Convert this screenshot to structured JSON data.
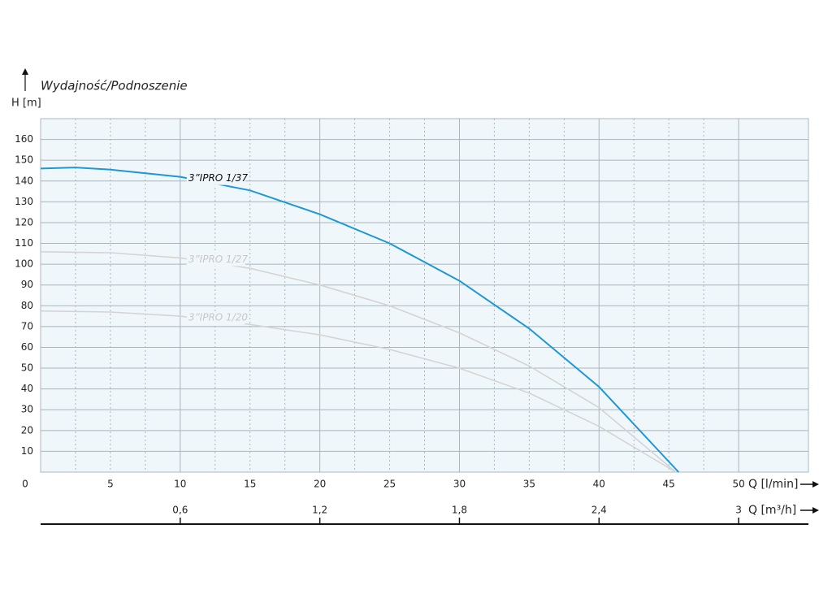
{
  "chart_data": {
    "type": "line",
    "title": "Wydajność/Podnoszenie",
    "y_label": "H [m]",
    "x_label": "Q [l/min]",
    "x2_label": "Q [m³/h]",
    "xlim": [
      0,
      55
    ],
    "xticks": [
      0,
      5,
      10,
      15,
      20,
      25,
      30,
      35,
      40,
      45,
      50
    ],
    "x2lim": [
      0,
      3.3
    ],
    "x2ticks": [
      {
        "value": 0.6,
        "label": "0,6"
      },
      {
        "value": 1.2,
        "label": "1,2"
      },
      {
        "value": 1.8,
        "label": "1,8"
      },
      {
        "value": 2.4,
        "label": "2,4"
      },
      3
    ],
    "ylim": [
      0,
      170
    ],
    "yticks": [
      10,
      20,
      30,
      40,
      50,
      60,
      70,
      80,
      90,
      100,
      110,
      120,
      130,
      140,
      150,
      160
    ],
    "grid": true,
    "series": [
      {
        "name": "3”IPRO 1/20",
        "color": "#d4d4d4",
        "x": [
          0,
          5,
          10,
          15,
          20,
          25,
          30,
          35,
          40,
          45.5
        ],
        "values": [
          77.5,
          77,
          75,
          71,
          66,
          59,
          50,
          38,
          22,
          0
        ]
      },
      {
        "name": "3”IPRO 1/27",
        "color": "#d4d4d4",
        "x": [
          0,
          5,
          10,
          15,
          20,
          25,
          30,
          35,
          40,
          45.5
        ],
        "values": [
          106,
          105.5,
          103,
          98,
          90,
          80,
          67,
          51,
          31,
          0
        ]
      },
      {
        "name": "3”IPRO 1/37",
        "color": "#1f97d4",
        "x": [
          0,
          2.5,
          5,
          10,
          15,
          20,
          25,
          30,
          35,
          40,
          45.7
        ],
        "values": [
          146,
          146.5,
          145.5,
          142,
          135.5,
          124,
          110,
          92,
          69,
          41,
          0
        ]
      }
    ]
  }
}
